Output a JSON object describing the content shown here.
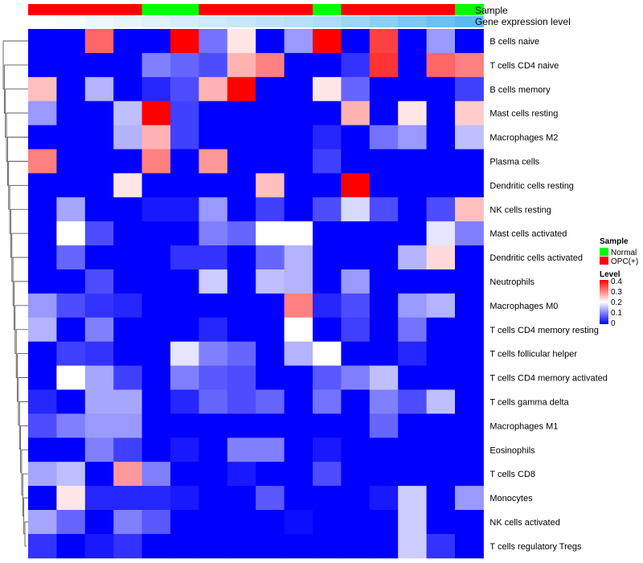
{
  "chart_data": {
    "type": "heatmap",
    "title": "",
    "color_scale": {
      "low": "#0000ff",
      "mid": "#ffffff",
      "high": "#ff0000",
      "min": 0,
      "max": 0.4
    },
    "annotation_labels": {
      "sample": "Sample",
      "gene": "Gene expression level"
    },
    "sample_groups": [
      "OPC(+)",
      "OPC(+)",
      "OPC(+)",
      "OPC(+)",
      "Normal",
      "Normal",
      "OPC(+)",
      "OPC(+)",
      "OPC(+)",
      "OPC(+)",
      "Normal",
      "OPC(+)",
      "OPC(+)",
      "OPC(+)",
      "OPC(+)",
      "Normal"
    ],
    "gene_expression_level": [
      0.02,
      0.05,
      0.1,
      0.15,
      0.2,
      0.25,
      0.3,
      0.35,
      0.4,
      0.45,
      0.5,
      0.6,
      0.7,
      0.8,
      0.9,
      1.0
    ],
    "rows": [
      "B cells naive",
      "T cells CD4 naive",
      "B cells memory",
      "Mast cells resting",
      "Macrophages M2",
      "Plasma cells",
      "Dendritic cells resting",
      "NK cells resting",
      "Mast cells activated",
      "Dendritic cells activated",
      "Neutrophils",
      "Macrophages M0",
      "T cells CD4 memory resting",
      "T cells follicular helper",
      "T cells CD4 memory activated",
      "T cells gamma delta",
      "Macrophages M1",
      "Eosinophils",
      "T cells CD8",
      "Monocytes",
      "NK cells activated",
      "T cells regulatory  Tregs"
    ],
    "values": [
      [
        0,
        0,
        0.32,
        0,
        0,
        0.4,
        0.09,
        0.22,
        0,
        0.12,
        0.4,
        0,
        0.35,
        0,
        0.12,
        0
      ],
      [
        0,
        0,
        0,
        0,
        0.1,
        0.08,
        0.06,
        0.26,
        0.3,
        0,
        0,
        0.04,
        0.36,
        0,
        0.32,
        0.3
      ],
      [
        0.25,
        0,
        0.14,
        0,
        0.03,
        0.06,
        0.26,
        0.4,
        0,
        0,
        0.22,
        0.08,
        0,
        0,
        0,
        0.05
      ],
      [
        0.12,
        0,
        0,
        0.15,
        0.4,
        0.05,
        0,
        0,
        0,
        0,
        0,
        0.26,
        0,
        0.22,
        0,
        0.24
      ],
      [
        0,
        0,
        0,
        0.14,
        0.26,
        0.05,
        0,
        0,
        0,
        0,
        0.03,
        0,
        0.09,
        0.12,
        0,
        0.15
      ],
      [
        0.3,
        0,
        0,
        0,
        0.3,
        0,
        0.28,
        0,
        0,
        0,
        0.05,
        0,
        0,
        0,
        0,
        0
      ],
      [
        0,
        0,
        0,
        0.22,
        0,
        0,
        0,
        0,
        0.25,
        0,
        0,
        0.4,
        0,
        0,
        0,
        0
      ],
      [
        0,
        0.13,
        0,
        0,
        0.02,
        0.02,
        0.12,
        0,
        0.05,
        0,
        0.06,
        0.17,
        0.06,
        0,
        0.06,
        0.25
      ],
      [
        0,
        0.2,
        0.06,
        0,
        0,
        0,
        0.1,
        0.08,
        0.2,
        0.2,
        0,
        0,
        0,
        0,
        0.18,
        0.1
      ],
      [
        0,
        0.08,
        0,
        0,
        0,
        0.04,
        0.04,
        0,
        0.08,
        0.14,
        0,
        0,
        0,
        0.14,
        0.23,
        0
      ],
      [
        0,
        0,
        0.06,
        0,
        0,
        0,
        0.16,
        0,
        0.15,
        0.14,
        0,
        0.12,
        0,
        0,
        0,
        0
      ],
      [
        0.12,
        0.06,
        0.04,
        0.03,
        0,
        0,
        0,
        0,
        0,
        0.3,
        0.03,
        0.06,
        0,
        0.12,
        0.14,
        0
      ],
      [
        0.14,
        0,
        0.1,
        0,
        0,
        0,
        0.03,
        0,
        0,
        0.2,
        0,
        0.05,
        0,
        0.09,
        0,
        0
      ],
      [
        0,
        0.05,
        0.04,
        0,
        0,
        0.18,
        0.1,
        0.08,
        0,
        0.14,
        0.2,
        0,
        0,
        0.03,
        0,
        0
      ],
      [
        0,
        0.2,
        0.13,
        0.05,
        0,
        0.1,
        0.07,
        0.06,
        0,
        0,
        0.07,
        0.1,
        0.15,
        0,
        0,
        0
      ],
      [
        0.03,
        0,
        0.13,
        0.13,
        0,
        0.03,
        0.08,
        0.06,
        0.08,
        0,
        0.09,
        0,
        0.1,
        0.06,
        0.15,
        0
      ],
      [
        0.06,
        0.1,
        0.12,
        0.12,
        0,
        0,
        0,
        0,
        0,
        0,
        0,
        0,
        0.08,
        0,
        0,
        0
      ],
      [
        0,
        0,
        0.1,
        0.05,
        0,
        0.02,
        0,
        0.1,
        0.1,
        0,
        0.02,
        0,
        0,
        0,
        0,
        0
      ],
      [
        0.13,
        0.15,
        0,
        0.28,
        0.1,
        0,
        0,
        0.02,
        0,
        0,
        0.06,
        0,
        0,
        0,
        0,
        0
      ],
      [
        0,
        0.22,
        0.03,
        0.03,
        0.03,
        0.02,
        0,
        0,
        0.07,
        0,
        0,
        0,
        0.02,
        0.16,
        0,
        0.12
      ],
      [
        0.13,
        0.08,
        0,
        0.1,
        0.07,
        0,
        0,
        0,
        0,
        0.01,
        0,
        0,
        0,
        0.16,
        0,
        0
      ],
      [
        0.04,
        0,
        0.02,
        0.04,
        0,
        0,
        0,
        0,
        0,
        0,
        0,
        0,
        0,
        0.16,
        0.04,
        0
      ]
    ],
    "legend": {
      "sample_title": "Sample",
      "sample_entries": [
        {
          "label": "Normal",
          "color": "#00ff00"
        },
        {
          "label": "OPC(+)",
          "color": "#ff0000"
        }
      ],
      "level_title": "Level",
      "level_ticks": [
        "0.4",
        "0.3",
        "0.2",
        "0.1",
        "0"
      ]
    }
  }
}
